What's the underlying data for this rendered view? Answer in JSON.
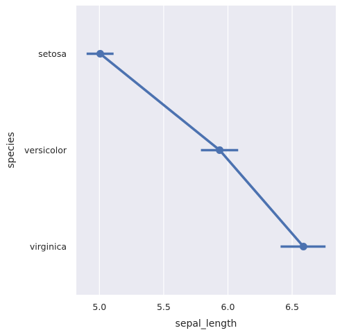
{
  "chart_data": {
    "type": "pointplot",
    "orientation": "horizontal",
    "xlabel": "sepal_length",
    "ylabel": "species",
    "categories": [
      "setosa",
      "versicolor",
      "virginica"
    ],
    "x_ticks": [
      "5.0",
      "5.5",
      "6.0",
      "6.5"
    ],
    "xlim": [
      4.82,
      6.84
    ],
    "grid": true,
    "series": [
      {
        "values": [
          5.006,
          5.936,
          6.588
        ],
        "ci_low": [
          4.9,
          5.79,
          6.41
        ],
        "ci_high": [
          5.11,
          6.08,
          6.76
        ]
      }
    ],
    "colors": {
      "series": "#4c72b0",
      "background": "#eaeaf2",
      "grid": "#ffffff"
    }
  }
}
